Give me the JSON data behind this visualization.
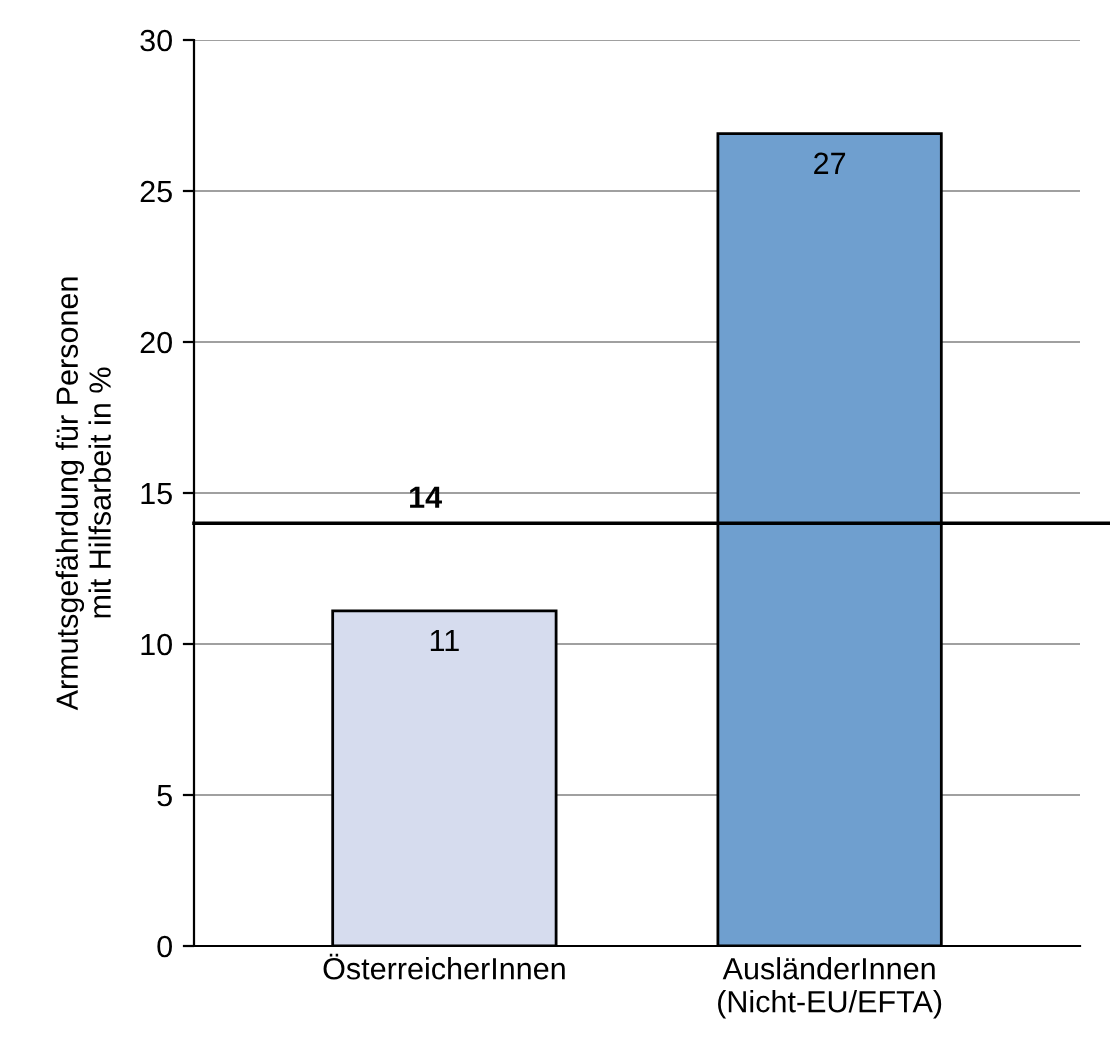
{
  "chart_data": {
    "type": "bar",
    "ylabel": "Armutsgefährdung für Personen\nmit Hilfsarbeit in %",
    "categories": [
      "ÖsterreicherInnen",
      "AusländerInnen\n(Nicht-EU/EFTA)"
    ],
    "values": [
      11.1,
      26.9
    ],
    "colors": [
      "#d6dcee",
      "#6f9fcf"
    ],
    "value_labels": [
      "11",
      "27"
    ],
    "ylim": [
      0,
      30
    ],
    "yticks": [
      0,
      5,
      10,
      15,
      20,
      25,
      30
    ],
    "grid": "y",
    "ref_lines": [
      {
        "axis": "y",
        "value": 14,
        "label": "14",
        "color": "#000000"
      }
    ]
  }
}
